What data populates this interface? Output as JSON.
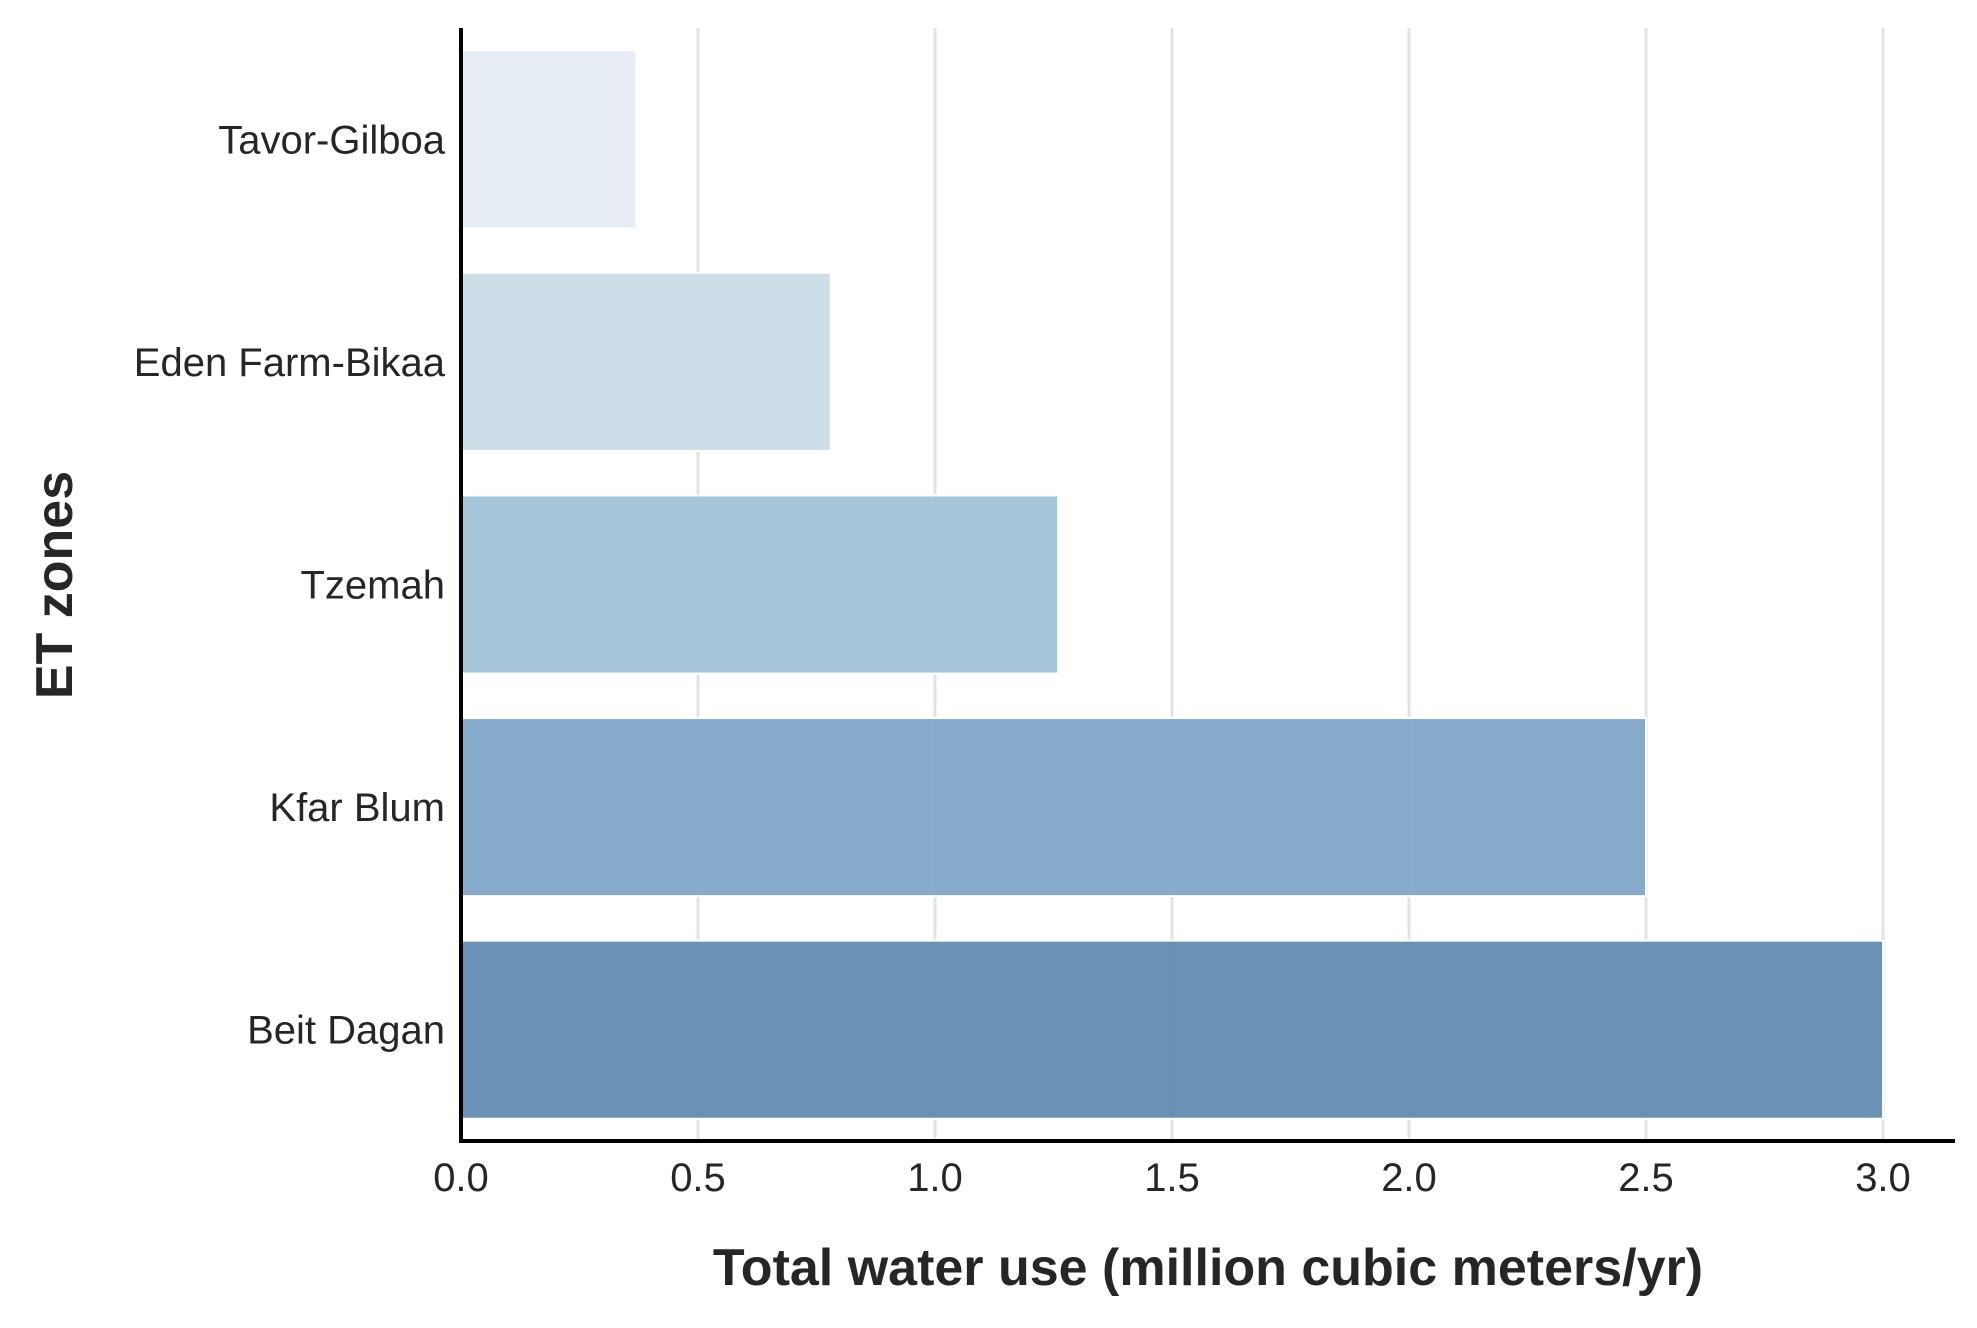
{
  "chart_data": {
    "type": "bar",
    "orientation": "horizontal",
    "title": "",
    "xlabel": "Total water use (million cubic meters/yr)",
    "ylabel": "ET zones",
    "categories": [
      "Tavor-Gilboa",
      "Eden Farm-Bikaa",
      "Tzemah",
      "Kfar Blum",
      "Beit Dagan"
    ],
    "values": [
      0.37,
      0.78,
      1.26,
      2.5,
      3.0
    ],
    "bar_colors": [
      "#e4ecf3",
      "#c9dbe7",
      "#9ec1d5",
      "#7ea5c7",
      "#6189b0"
    ],
    "xlim": [
      0,
      3.15
    ],
    "xticks": [
      0.0,
      0.5,
      1.0,
      1.5,
      2.0,
      2.5,
      3.0
    ],
    "xtick_labels": [
      "0.0",
      "0.5",
      "1.0",
      "1.5",
      "2.0",
      "2.5",
      "3.0"
    ],
    "grid": "vertical",
    "grid_color": "#e3e3e3",
    "axis_color": "#000000"
  }
}
